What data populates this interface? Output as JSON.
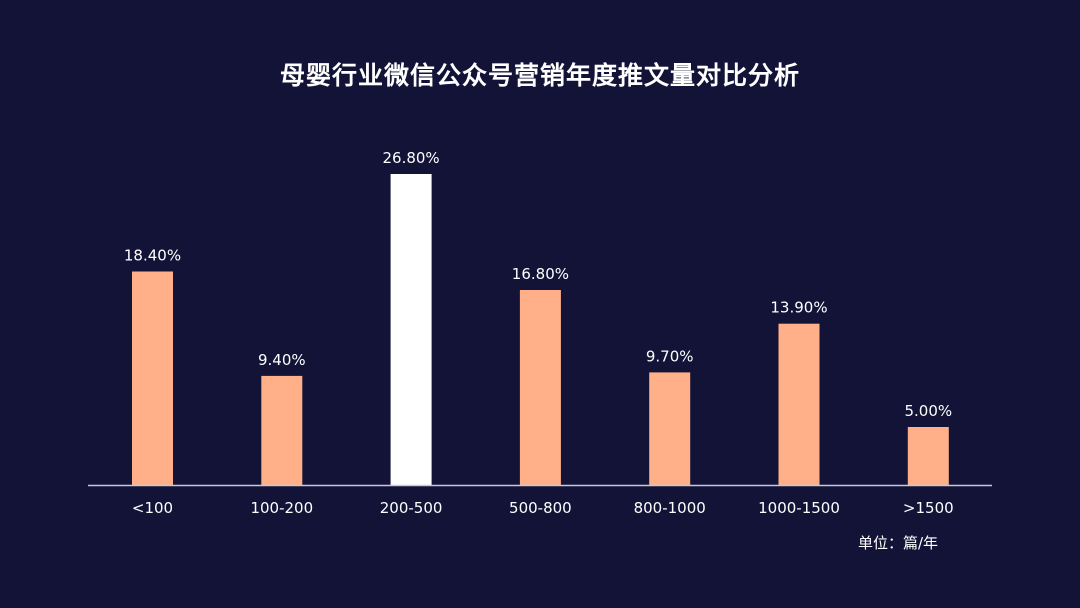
{
  "chart_data": {
    "type": "bar",
    "title": "母婴行业微信公众号营销年度推文量对比分析",
    "categories": [
      "<100",
      "100-200",
      "200-500",
      "500-800",
      "800-1000",
      "1000-1500",
      ">1500"
    ],
    "values": [
      18.4,
      9.4,
      26.8,
      16.8,
      9.7,
      13.9,
      5.0
    ],
    "data_labels": [
      "18.40%",
      "9.40%",
      "26.80%",
      "16.80%",
      "9.70%",
      "13.90%",
      "5.00%"
    ],
    "highlight_index": 2,
    "unit_label": "单位：篇/年",
    "ylim": [
      0,
      30
    ],
    "grid": false,
    "colors": {
      "background": "#131338",
      "bar": "#ffb088",
      "highlight_bar": "#ffffff",
      "text": "#ffffff",
      "axis": "#c9c9d6"
    }
  }
}
